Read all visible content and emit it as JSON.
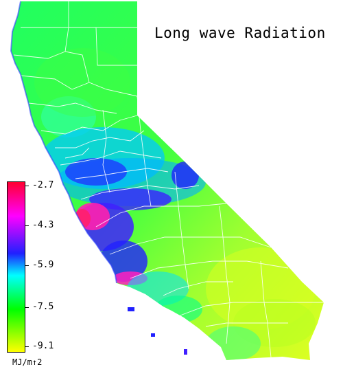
{
  "title": "Long wave Radiation",
  "legend": {
    "ticks": [
      "-2.7",
      "-4.3",
      "-5.9",
      "-7.5",
      "-9.1"
    ],
    "unit": "MJ/m↑2",
    "colors": [
      "#ff0000",
      "#ff00ff",
      "#2020ff",
      "#00ffff",
      "#00ff00",
      "#ffff00"
    ]
  },
  "map_colors": {
    "north": "#30ff50",
    "coast_cool": "#ff20a0",
    "coast_mid": "#2030ff",
    "valley": "#00d8ff",
    "east": "#80ff20",
    "southeast": "#d8ff20",
    "county_lines": "#ffffff"
  }
}
